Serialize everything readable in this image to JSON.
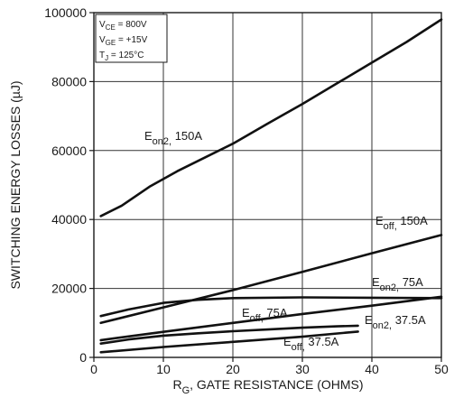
{
  "chart_data": {
    "type": "line",
    "title": "",
    "xlabel": {
      "main": "R",
      "sub": "G",
      "rest": ", GATE  RESISTANCE (OHMS)"
    },
    "ylabel": "SWITCHING  ENERGY  LOSSES (µJ)",
    "xlim": [
      0,
      50
    ],
    "ylim": [
      0,
      100000
    ],
    "x_ticks": [
      "0",
      "10",
      "20",
      "30",
      "40",
      "50"
    ],
    "y_ticks": [
      "0",
      "20000",
      "40000",
      "60000",
      "80000",
      "100000"
    ],
    "grid": true,
    "conditions": [
      {
        "main": "V",
        "sub": "CE",
        "rest": " =  800V"
      },
      {
        "main": "V",
        "sub": "GE",
        "rest": " =  +15V"
      },
      {
        "main": "T",
        "sub": "J",
        "rest": " = 125°C"
      }
    ],
    "series": [
      {
        "name": "E_on2, 150A",
        "x": [
          1,
          4,
          8,
          12,
          16,
          20,
          25,
          30,
          35,
          40,
          45,
          50
        ],
        "y": [
          41000,
          44000,
          49500,
          54000,
          58000,
          62000,
          67800,
          73500,
          79500,
          85500,
          91500,
          98000
        ]
      },
      {
        "name": "E_off, 150A",
        "x": [
          1,
          10,
          20,
          30,
          40,
          50
        ],
        "y": [
          10000,
          14500,
          19500,
          24800,
          30200,
          35500
        ]
      },
      {
        "name": "E_on2, 75A",
        "x": [
          1,
          5,
          10,
          15,
          20,
          30,
          40,
          50
        ],
        "y": [
          12000,
          13900,
          15800,
          16700,
          17200,
          17400,
          17300,
          17200
        ]
      },
      {
        "name": "E_off, 75A",
        "x": [
          1,
          10,
          20,
          30,
          40,
          50
        ],
        "y": [
          5000,
          7400,
          10000,
          12600,
          15000,
          17600
        ]
      },
      {
        "name": "E_on2, 37.5A",
        "x": [
          1,
          5,
          10,
          15,
          20,
          25,
          30,
          35,
          38
        ],
        "y": [
          4000,
          5200,
          6300,
          7000,
          7600,
          8100,
          8600,
          9000,
          9200
        ]
      },
      {
        "name": "E_off, 37.5A",
        "x": [
          1,
          10,
          20,
          30,
          38
        ],
        "y": [
          1500,
          3000,
          4500,
          6000,
          7500
        ]
      }
    ],
    "annotations": [
      {
        "main": "E",
        "sub": "on2,",
        "rest": " 150A",
        "series": 0
      },
      {
        "main": "E",
        "sub": "off,",
        "rest": " 150A",
        "series": 1
      },
      {
        "main": "E",
        "sub": "on2,",
        "rest": " 75A",
        "series": 2
      },
      {
        "main": "E",
        "sub": "off,",
        "rest": " 75A",
        "series": 3
      },
      {
        "main": "E",
        "sub": "on2,",
        "rest": " 37.5A",
        "series": 4
      },
      {
        "main": "E",
        "sub": "off,",
        "rest": " 37.5A",
        "series": 5
      }
    ]
  }
}
